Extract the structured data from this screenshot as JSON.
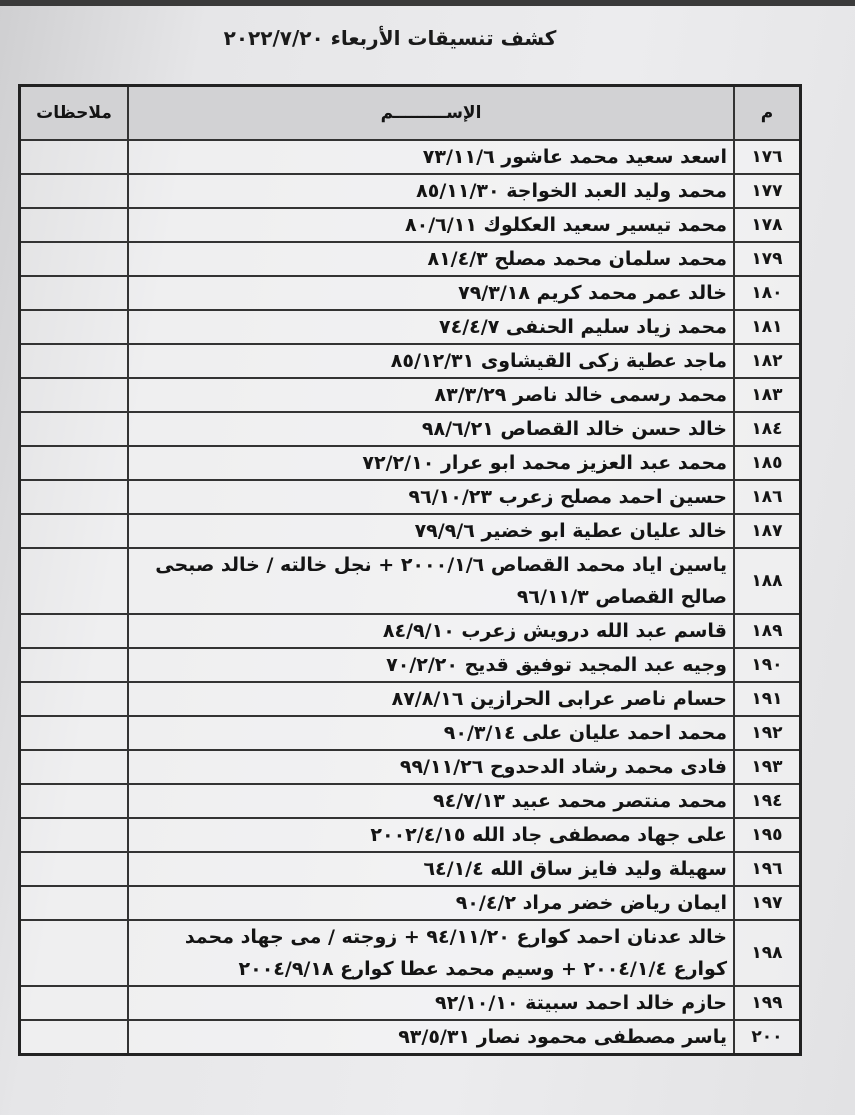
{
  "title": "كشف تنسيقات الأربعاء ٢٠٢٢/٧/٢٠",
  "headers": {
    "number": "م",
    "name": "الإســـــــــم",
    "notes": "ملاحظات"
  },
  "rows": [
    {
      "n": "١٧٦",
      "name": "اسعد سعيد محمد عاشور ٧٣/١١/٦"
    },
    {
      "n": "١٧٧",
      "name": "محمد وليد العبد الخواجة ٨٥/١١/٣٠"
    },
    {
      "n": "١٧٨",
      "name": "محمد تيسير سعيد العكلوك ٨٠/٦/١١"
    },
    {
      "n": "١٧٩",
      "name": "محمد سلمان محمد مصلح ٨١/٤/٣"
    },
    {
      "n": "١٨٠",
      "name": "خالد عمر محمد كريم ٧٩/٣/١٨"
    },
    {
      "n": "١٨١",
      "name": "محمد زياد سليم الحنفى ٧٤/٤/٧"
    },
    {
      "n": "١٨٢",
      "name": "ماجد عطية زكى القيشاوى ٨٥/١٢/٣١"
    },
    {
      "n": "١٨٣",
      "name": "محمد رسمى خالد ناصر ٨٣/٣/٢٩"
    },
    {
      "n": "١٨٤",
      "name": "خالد حسن خالد القصاص ٩٨/٦/٢١"
    },
    {
      "n": "١٨٥",
      "name": "محمد عبد العزيز محمد ابو عرار ٧٢/٢/١٠"
    },
    {
      "n": "١٨٦",
      "name": "حسين احمد مصلح زعرب ٩٦/١٠/٢٣"
    },
    {
      "n": "١٨٧",
      "name": "خالد عليان عطية ابو خضير ٧٩/٩/٦"
    },
    {
      "n": "١٨٨",
      "name": "ياسين اياد محمد القصاص ٢٠٠٠/١/٦ + نجل خالته / خالد صبحى صالح القصاص ٩٦/١١/٣"
    },
    {
      "n": "١٨٩",
      "name": "قاسم عبد الله درويش زعرب ٨٤/٩/١٠"
    },
    {
      "n": "١٩٠",
      "name": "وجيه عبد المجيد توفيق قديح ٧٠/٢/٢٠"
    },
    {
      "n": "١٩١",
      "name": "حسام ناصر عرابى الحرازين ٨٧/٨/١٦"
    },
    {
      "n": "١٩٢",
      "name": "محمد احمد عليان على ٩٠/٣/١٤"
    },
    {
      "n": "١٩٣",
      "name": "فادى محمد رشاد الدحدوح ٩٩/١١/٢٦"
    },
    {
      "n": "١٩٤",
      "name": "محمد منتصر محمد عبيد ٩٤/٧/١٣"
    },
    {
      "n": "١٩٥",
      "name": "على جهاد مصطفى جاد الله ٢٠٠٢/٤/١٥"
    },
    {
      "n": "١٩٦",
      "name": "سهيلة وليد فايز ساق الله ٦٤/١/٤"
    },
    {
      "n": "١٩٧",
      "name": "ايمان رياض خضر مراد ٩٠/٤/٢"
    },
    {
      "n": "١٩٨",
      "name": "خالد عدنان احمد كوارع ٩٤/١١/٢٠ + زوجته / مى جهاد محمد كوارع ٢٠٠٤/١/٤ + وسيم محمد عطا كوارع ٢٠٠٤/٩/١٨"
    },
    {
      "n": "١٩٩",
      "name": "حازم خالد احمد سبيتة ٩٢/١٠/١٠"
    },
    {
      "n": "٢٠٠",
      "name": "ياسر مصطفى محمود نصار ٩٣/٥/٣١"
    }
  ]
}
